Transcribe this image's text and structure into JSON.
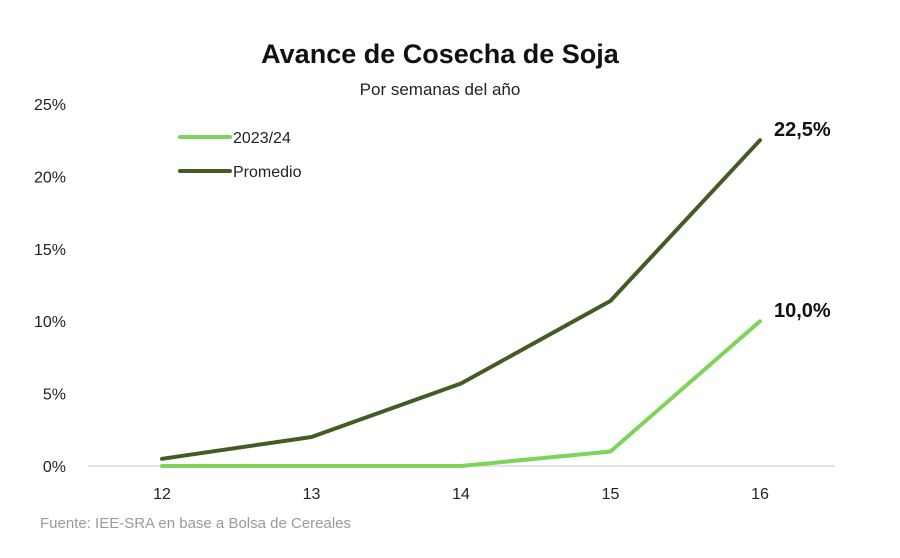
{
  "chart_data": {
    "type": "line",
    "title": "Avance de Cosecha de Soja",
    "subtitle": "Por semanas del año",
    "x": [
      12,
      13,
      14,
      15,
      16
    ],
    "x_tick_labels": [
      "12",
      "13",
      "14",
      "15",
      "16"
    ],
    "ylim": [
      0,
      25
    ],
    "y_ticks": [
      0,
      5,
      10,
      15,
      20,
      25
    ],
    "y_tick_labels": [
      "0%",
      "5%",
      "10%",
      "15%",
      "20%",
      "25%"
    ],
    "series": [
      {
        "name": "2023/24",
        "values": [
          0,
          0,
          0,
          1.0,
          10.0
        ],
        "color": "#7ed35a",
        "end_label": "10,0%"
      },
      {
        "name": "Promedio",
        "values": [
          0.5,
          2.0,
          5.7,
          11.4,
          22.5
        ],
        "color": "#445b24",
        "end_label": "22,5%"
      }
    ],
    "grid": false,
    "legend_position": "top-left",
    "source": "Fuente: IEE-SRA en base a Bolsa de Cereales"
  }
}
